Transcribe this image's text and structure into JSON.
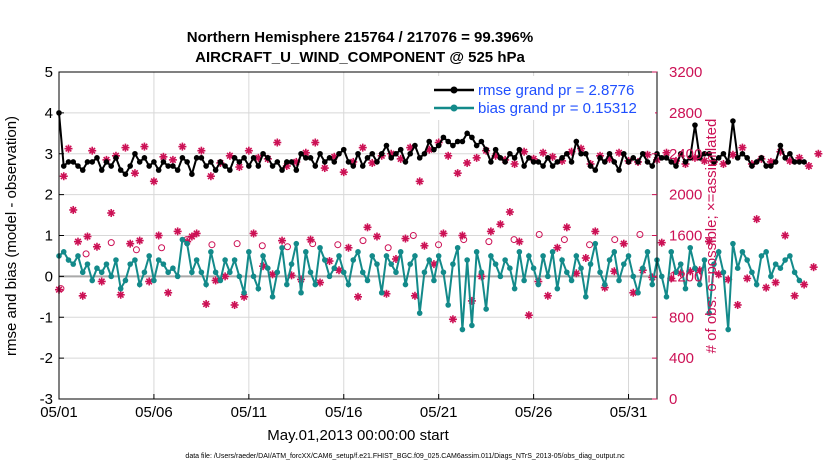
{
  "chart_data": {
    "type": "line",
    "title_line1": "Northern Hemisphere 215764 / 217076 = 99.396%",
    "title_line2": "AIRCRAFT_U_WIND_COMPONENT @ 525 hPa",
    "xlabel": "May.01,2013 00:00:00 start",
    "ylabel_left": "rmse and bias (model - observation)",
    "ylabel_right": "# of obs: o=possible; ×=assimilated",
    "xlim": [
      0,
      31.5
    ],
    "ylim_left": [
      -3,
      5
    ],
    "ylim_right": [
      0,
      3200
    ],
    "x_ticks": [
      {
        "value": 0,
        "label": "05/01"
      },
      {
        "value": 5,
        "label": "05/06"
      },
      {
        "value": 10,
        "label": "05/11"
      },
      {
        "value": 15,
        "label": "05/16"
      },
      {
        "value": 20,
        "label": "05/21"
      },
      {
        "value": 25,
        "label": "05/26"
      },
      {
        "value": 30,
        "label": "05/31"
      }
    ],
    "y_ticks_left": [
      "5",
      "4",
      "3",
      "2",
      "1",
      "0",
      "-1",
      "-2",
      "-3"
    ],
    "y_ticks_right": [
      "3200",
      "2800",
      "2400",
      "2000",
      "1600",
      "1200",
      "800",
      "400",
      "0"
    ],
    "zero_line": 0,
    "x_step_days": 0.25,
    "series": [
      {
        "name": "rmse",
        "legend": "rmse grand pr = 2.8776",
        "color": "#000000",
        "values": [
          4.0,
          2.7,
          2.8,
          2.8,
          2.7,
          2.6,
          2.8,
          2.8,
          2.9,
          2.6,
          2.8,
          2.7,
          2.9,
          2.6,
          2.5,
          2.7,
          3.0,
          2.8,
          2.9,
          2.7,
          2.8,
          2.6,
          2.8,
          2.7,
          2.7,
          2.6,
          2.9,
          2.8,
          2.5,
          2.9,
          2.9,
          2.7,
          2.8,
          2.6,
          2.8,
          2.7,
          2.6,
          2.9,
          2.8,
          2.9,
          2.7,
          2.9,
          2.7,
          3.0,
          2.9,
          2.7,
          2.8,
          2.6,
          2.8,
          2.8,
          2.6,
          3.0,
          2.9,
          2.9,
          2.7,
          3.0,
          2.8,
          2.9,
          2.8,
          3.0,
          3.1,
          2.8,
          2.7,
          3.0,
          2.7,
          2.9,
          3.0,
          2.8,
          3.0,
          3.2,
          2.9,
          3.0,
          3.1,
          2.8,
          3.0,
          3.2,
          2.9,
          3.0,
          3.3,
          3.1,
          3.2,
          3.4,
          3.3,
          3.2,
          3.3,
          3.3,
          3.5,
          3.4,
          3.2,
          3.3,
          3.1,
          2.8,
          3.1,
          2.9,
          2.8,
          3.0,
          2.9,
          3.1,
          2.7,
          2.9,
          2.8,
          2.8,
          2.7,
          2.9,
          2.7,
          2.8,
          2.9,
          3.0,
          2.8,
          3.3,
          3.0,
          3.0,
          2.7,
          2.6,
          2.9,
          2.8,
          3.0,
          2.8,
          2.6,
          3.0,
          2.8,
          2.9,
          2.8,
          3.0,
          2.8,
          2.7,
          3.0,
          2.9,
          2.9,
          2.8,
          2.7,
          3.0,
          2.8,
          2.9,
          3.7,
          2.9,
          3.0,
          3.0,
          2.8,
          2.9,
          3.0,
          2.8,
          3.8,
          2.9,
          3.0,
          2.9,
          2.7,
          2.8,
          2.9,
          2.7,
          2.7,
          2.8,
          3.2,
          2.9,
          3.0,
          2.8,
          2.8,
          2.8
        ]
      },
      {
        "name": "bias",
        "legend": "bias grand pr = 0.15312",
        "color": "#138a8a",
        "values": [
          0.5,
          0.6,
          0.4,
          0.3,
          0.5,
          0.1,
          0.3,
          -0.1,
          0.2,
          0.1,
          0.3,
          0.0,
          0.4,
          -0.3,
          -0.1,
          0.3,
          0.4,
          -0.2,
          0.1,
          0.5,
          -0.1,
          0.4,
          0.3,
          0.1,
          0.2,
          0.0,
          0.9,
          0.8,
          0.1,
          0.4,
          0.1,
          -0.2,
          0.6,
          0.1,
          -0.1,
          0.4,
          0.1,
          0.4,
          0.0,
          -0.4,
          0.6,
          0.0,
          -0.3,
          0.5,
          0.2,
          -0.5,
          0.1,
          0.7,
          -0.2,
          0.3,
          0.8,
          -0.4,
          0.6,
          0.1,
          -0.2,
          0.7,
          0.4,
          0.0,
          0.2,
          0.5,
          0.1,
          -0.2,
          0.4,
          0.6,
          0.1,
          -0.1,
          0.5,
          0.3,
          -0.4,
          0.5,
          0.3,
          0.1,
          0.6,
          -0.2,
          0.3,
          0.5,
          -0.9,
          0.1,
          0.4,
          -0.1,
          0.5,
          0.1,
          -0.7,
          0.3,
          0.7,
          -1.3,
          0.4,
          -1.2,
          0.6,
          0.1,
          -0.8,
          0.5,
          0.3,
          0.0,
          0.4,
          0.2,
          -0.3,
          0.6,
          -0.1,
          0.5,
          0.2,
          -0.2,
          0.5,
          0.0,
          0.6,
          -0.3,
          0.4,
          0.1,
          -0.1,
          0.5,
          0.2,
          -0.5,
          0.3,
          0.8,
          0.1,
          -0.2,
          0.4,
          0.6,
          -0.1,
          0.3,
          0.5,
          0.0,
          -0.4,
          0.2,
          0.6,
          -0.2,
          0.4,
          0.0,
          -0.5,
          0.6,
          0.1,
          0.3,
          -0.3,
          0.7,
          0.2,
          -0.2,
          0.4,
          -0.9,
          0.3,
          0.6,
          0.1,
          -1.3,
          0.8,
          0.2,
          0.6,
          0.4,
          0.1,
          -0.2,
          0.5,
          0.6,
          0.0,
          0.3,
          0.2,
          0.4,
          0.5,
          0.1,
          -0.1
        ]
      },
      {
        "name": "obs_possible",
        "color": "#cc1155",
        "values": [
          1080,
          1420,
          1530,
          1460,
          1480,
          1560,
          1510,
          1520,
          1500,
          1490,
          1520,
          1510,
          1550,
          1480,
          1600,
          1510,
          1560,
          1540,
          1560,
          1610,
          1560,
          1510,
          1560,
          1610
        ]
      },
      {
        "name": "obs_assimilated",
        "color": "#cc1155",
        "values": [
          1070,
          2180,
          2450,
          1850,
          1540,
          1010,
          1590,
          2430,
          1490,
          1150,
          2340,
          1820,
          2380,
          1020,
          2460,
          1520,
          2210,
          1550,
          2470,
          1150,
          2130,
          1600,
          2370,
          1040,
          2340,
          1640,
          2470,
          1540,
          1590,
          1620,
          2430,
          930,
          2180,
          1160,
          2310,
          1200,
          2380,
          920,
          2270,
          1000,
          2430,
          1620,
          2360,
          1300,
          2350,
          1220,
          2510,
          1550,
          2280,
          1210,
          2320,
          1170,
          2410,
          1560,
          2510,
          1140,
          2260,
          1350,
          2370,
          1260,
          2220,
          1480,
          2320,
          1000,
          2460,
          1680,
          2310,
          1590,
          2380,
          1030,
          2400,
          1370,
          2350,
          1570,
          2460,
          1010,
          2130,
          1500,
          2440,
          1320,
          2510,
          1620,
          2380,
          780,
          2210,
          1600,
          2310,
          960,
          2360,
          1200,
          2430,
          1640,
          2380,
          1710,
          2340,
          1830,
          2300,
          1540,
          2420,
          820,
          2350,
          1150,
          2410,
          1010,
          2370,
          1480,
          2330,
          1680,
          2420,
          1230,
          2450,
          1380,
          2300,
          1640,
          2380,
          1090,
          2350,
          1250,
          2410,
          1520,
          2330,
          1040,
          2320,
          1260,
          2390,
          1190,
          2340,
          1530,
          2410,
          1180,
          2330,
          1230,
          2300,
          1250,
          2360,
          1260,
          2330,
          1540,
          2320,
          1220,
          2300,
          1170,
          2390,
          920,
          2460,
          1180,
          2300,
          1760,
          2350,
          1090,
          2320,
          1140,
          2420,
          1600,
          2330,
          1010,
          2360,
          1120,
          2280,
          1290,
          2400
        ]
      }
    ],
    "legend_position": "top-right"
  },
  "footer": "data file: /Users/raeder/DAI/ATM_forcXX/CAM6_setup/f.e21.FHIST_BGC.f09_025.CAM6assim.011/Diags_NTrS_2013-05/obs_diag_output.nc"
}
